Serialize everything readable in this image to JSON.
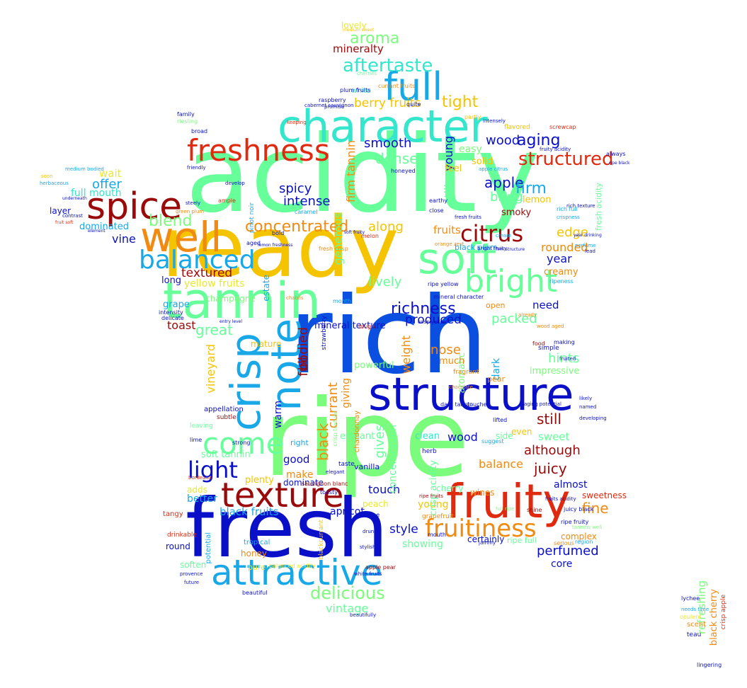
{
  "palette": {
    "lime": "#7CFC7C",
    "green": "#66FF99",
    "aqua": "#33E6CC",
    "sky": "#18A8E8",
    "blue": "#0A4FE0",
    "navy": "#0A10C8",
    "darkred": "#9A0A0A",
    "red": "#E02A10",
    "orange": "#F08A10",
    "gold": "#F5C400",
    "yellow": "#E8E830",
    "grey": "#6070A0"
  },
  "words": [
    {
      "text": "acidity",
      "color": "green"
    },
    {
      "text": "ready",
      "color": "gold"
    },
    {
      "text": "rich",
      "color": "blue"
    },
    {
      "text": "ripe",
      "color": "lime"
    },
    {
      "text": "fresh",
      "color": "navy"
    },
    {
      "text": "tannin",
      "color": "green"
    },
    {
      "text": "character",
      "color": "aqua"
    },
    {
      "text": "structure",
      "color": "navy"
    },
    {
      "text": "crisp",
      "color": "sky"
    },
    {
      "text": "note",
      "color": "sky"
    },
    {
      "text": "fruity",
      "color": "red"
    },
    {
      "text": "texture",
      "color": "darkred"
    },
    {
      "text": "attractive",
      "color": "sky"
    },
    {
      "text": "spice",
      "color": "darkred"
    },
    {
      "text": "well",
      "color": "orange"
    },
    {
      "text": "freshness",
      "color": "red"
    },
    {
      "text": "soft",
      "color": "green"
    },
    {
      "text": "full",
      "color": "sky"
    },
    {
      "text": "bright",
      "color": "green"
    },
    {
      "text": "balanced",
      "color": "sky"
    },
    {
      "text": "come",
      "color": "green"
    },
    {
      "text": "light",
      "color": "navy"
    },
    {
      "text": "fruitiness",
      "color": "orange"
    },
    {
      "text": "citrus",
      "color": "darkred"
    },
    {
      "text": "concentrated",
      "color": "orange"
    },
    {
      "text": "structured",
      "color": "red"
    },
    {
      "text": "richness",
      "color": "navy"
    },
    {
      "text": "aftertaste",
      "color": "aqua"
    },
    {
      "text": "delicious",
      "color": "lime"
    },
    {
      "text": "aroma",
      "color": "lime"
    },
    {
      "text": "mineralty",
      "color": "darkred"
    },
    {
      "text": "lovely",
      "color": "yellow"
    },
    {
      "text": "berry fruits",
      "color": "gold"
    },
    {
      "text": "tight",
      "color": "gold"
    },
    {
      "text": "smooth",
      "color": "navy"
    },
    {
      "text": "dense",
      "color": "green"
    },
    {
      "text": "aging",
      "color": "navy"
    },
    {
      "text": "wood",
      "color": "navy"
    },
    {
      "text": "apple",
      "color": "navy"
    },
    {
      "text": "firm",
      "color": "sky"
    },
    {
      "text": "blend",
      "color": "lime"
    },
    {
      "text": "spicy",
      "color": "navy"
    },
    {
      "text": "intense",
      "color": "navy"
    },
    {
      "text": "offer",
      "color": "sky"
    },
    {
      "text": "full mouth",
      "color": "aqua"
    },
    {
      "text": "dominated",
      "color": "sky"
    },
    {
      "text": "vine",
      "color": "navy"
    },
    {
      "text": "wait",
      "color": "yellow"
    },
    {
      "text": "layer",
      "color": "navy"
    },
    {
      "text": "textured",
      "color": "darkred"
    },
    {
      "text": "yellow fruits",
      "color": "yellow"
    },
    {
      "text": "long",
      "color": "navy"
    },
    {
      "text": "grape",
      "color": "sky"
    },
    {
      "text": "toast",
      "color": "darkred"
    },
    {
      "text": "great",
      "color": "green"
    },
    {
      "text": "lively",
      "color": "green"
    },
    {
      "text": "produced",
      "color": "navy"
    },
    {
      "text": "packed",
      "color": "green"
    },
    {
      "text": "need",
      "color": "navy"
    },
    {
      "text": "edge",
      "color": "gold"
    },
    {
      "text": "rounded",
      "color": "orange"
    },
    {
      "text": "year",
      "color": "navy"
    },
    {
      "text": "creamy",
      "color": "orange"
    },
    {
      "text": "fruits",
      "color": "orange"
    },
    {
      "text": "along",
      "color": "gold"
    },
    {
      "text": "bring",
      "color": "green"
    },
    {
      "text": "smoky",
      "color": "darkred"
    },
    {
      "text": "lemon",
      "color": "gold"
    },
    {
      "text": "mineral texture",
      "color": "navy"
    },
    {
      "text": "nose",
      "color": "orange"
    },
    {
      "text": "vineyard",
      "color": "gold"
    },
    {
      "text": "sweet",
      "color": "green"
    },
    {
      "text": "still",
      "color": "darkred"
    },
    {
      "text": "although",
      "color": "darkred"
    },
    {
      "text": "hints",
      "color": "green"
    },
    {
      "text": "impressive",
      "color": "lime"
    },
    {
      "text": "balance",
      "color": "orange"
    },
    {
      "text": "juicy",
      "color": "darkred"
    },
    {
      "text": "almost",
      "color": "navy"
    },
    {
      "text": "soft tannin",
      "color": "green"
    },
    {
      "text": "good",
      "color": "navy"
    },
    {
      "text": "make",
      "color": "orange"
    },
    {
      "text": "plenty",
      "color": "gold"
    },
    {
      "text": "dominate",
      "color": "navy"
    },
    {
      "text": "touch",
      "color": "navy"
    },
    {
      "text": "elegant",
      "color": "green"
    },
    {
      "text": "wood",
      "color": "navy"
    },
    {
      "text": "apricot",
      "color": "navy"
    },
    {
      "text": "black fruits",
      "color": "sky"
    },
    {
      "text": "cherry",
      "color": "green"
    },
    {
      "text": "wines",
      "color": "orange"
    },
    {
      "text": "fine",
      "color": "orange"
    },
    {
      "text": "sweetness",
      "color": "red"
    },
    {
      "text": "style",
      "color": "navy"
    },
    {
      "text": "young",
      "color": "gold"
    },
    {
      "text": "showing",
      "color": "green"
    },
    {
      "text": "certainly",
      "color": "navy"
    },
    {
      "text": "perfumed",
      "color": "navy"
    },
    {
      "text": "core",
      "color": "navy"
    },
    {
      "text": "complex",
      "color": "orange"
    },
    {
      "text": "round",
      "color": "navy"
    },
    {
      "text": "better",
      "color": "sky"
    },
    {
      "text": "adds",
      "color": "yellow"
    },
    {
      "text": "soften",
      "color": "green"
    },
    {
      "text": "honey",
      "color": "orange"
    },
    {
      "text": "vintage",
      "color": "green"
    },
    {
      "text": "peach",
      "color": "yellow"
    },
    {
      "text": "clean",
      "color": "aqua"
    },
    {
      "text": "side",
      "color": "green"
    },
    {
      "text": "even",
      "color": "gold"
    },
    {
      "text": "generous",
      "color": "green"
    },
    {
      "text": "champagne",
      "color": "lime"
    },
    {
      "text": "mature",
      "color": "gold"
    },
    {
      "text": "gives",
      "color": "green"
    },
    {
      "text": "giving",
      "color": "orange"
    },
    {
      "text": "powerful",
      "color": "lime"
    },
    {
      "text": "ripe full",
      "color": "green"
    },
    {
      "text": "crisp acidity",
      "color": "green"
    },
    {
      "text": "black",
      "color": "orange"
    },
    {
      "text": "currant",
      "color": "orange"
    },
    {
      "text": "bodied",
      "color": "darkred"
    },
    {
      "text": "full",
      "color": "darkred"
    },
    {
      "text": "concentration",
      "color": "green"
    },
    {
      "text": "warm",
      "color": "navy"
    },
    {
      "text": "estate",
      "color": "sky"
    },
    {
      "text": "young",
      "color": "navy"
    },
    {
      "text": "still",
      "color": "green"
    },
    {
      "text": "firm tannin",
      "color": "orange"
    },
    {
      "text": "weight",
      "color": "orange"
    },
    {
      "text": "aromatic",
      "color": "lime"
    },
    {
      "text": "dark",
      "color": "sky"
    },
    {
      "text": "refreshing",
      "color": "lime"
    },
    {
      "text": "black cherry",
      "color": "orange"
    },
    {
      "text": "crisp apple",
      "color": "red"
    },
    {
      "text": "lingering",
      "color": "navy"
    },
    {
      "text": "scent",
      "color": "orange"
    },
    {
      "text": "teau",
      "color": "navy"
    },
    {
      "text": "needs time",
      "color": "sky"
    },
    {
      "text": "lychee",
      "color": "navy"
    },
    {
      "text": "opulent",
      "color": "yellow"
    },
    {
      "text": "beautiful",
      "color": "navy"
    },
    {
      "text": "beautifully",
      "color": "navy"
    },
    {
      "text": "pure",
      "color": "yellow"
    },
    {
      "text": "balanced acidity",
      "color": "yellow"
    },
    {
      "text": "tropical",
      "color": "sky"
    },
    {
      "text": "potential",
      "color": "sky"
    },
    {
      "text": "drinkable",
      "color": "red"
    },
    {
      "text": "provence",
      "color": "navy"
    },
    {
      "text": "future",
      "color": "navy"
    },
    {
      "text": "tangy",
      "color": "red"
    },
    {
      "text": "bordeaux",
      "color": "red"
    },
    {
      "text": "intensity",
      "color": "navy"
    },
    {
      "text": "delicate",
      "color": "navy"
    },
    {
      "text": "appellation",
      "color": "navy"
    },
    {
      "text": "subtle",
      "color": "darkred"
    },
    {
      "text": "strong",
      "color": "navy"
    },
    {
      "text": "leaving",
      "color": "green"
    },
    {
      "text": "lime",
      "color": "navy"
    },
    {
      "text": "family",
      "color": "navy"
    },
    {
      "text": "riesling",
      "color": "lime"
    },
    {
      "text": "broad",
      "color": "navy"
    },
    {
      "text": "herbaceous",
      "color": "sky"
    },
    {
      "text": "medium bodied",
      "color": "sky"
    },
    {
      "text": "soon",
      "color": "gold"
    },
    {
      "text": "contrast",
      "color": "navy"
    },
    {
      "text": "pinot noir",
      "color": "sky"
    },
    {
      "text": "flavored",
      "color": "gold"
    },
    {
      "text": "screwcap",
      "color": "red"
    },
    {
      "text": "honeyed",
      "color": "navy"
    },
    {
      "text": "white",
      "color": "aqua"
    },
    {
      "text": "raspberry",
      "color": "navy"
    },
    {
      "text": "cherries",
      "color": "green"
    },
    {
      "text": "medium sweet",
      "color": "gold"
    },
    {
      "text": "chardonnay",
      "color": "orange"
    },
    {
      "text": "vanilla",
      "color": "navy"
    },
    {
      "text": "pear",
      "color": "orange"
    },
    {
      "text": "grapefruit",
      "color": "orange"
    },
    {
      "text": "stone",
      "color": "navy"
    },
    {
      "text": "herb",
      "color": "navy"
    },
    {
      "text": "ripe yellow",
      "color": "navy"
    },
    {
      "text": "black plum",
      "color": "sky"
    },
    {
      "text": "open",
      "color": "orange"
    },
    {
      "text": "fresh acidity",
      "color": "green"
    },
    {
      "text": "ripeness",
      "color": "sky"
    },
    {
      "text": "suggest",
      "color": "sky"
    },
    {
      "text": "white fruits",
      "color": "navy"
    },
    {
      "text": "cabernet sauvignon",
      "color": "navy"
    },
    {
      "text": "sauvignon blanc",
      "color": "darkred"
    },
    {
      "text": "apple pear",
      "color": "darkred"
    },
    {
      "text": "food",
      "color": "darkred"
    },
    {
      "text": "fruits acidity",
      "color": "navy"
    },
    {
      "text": "ripe fruity",
      "color": "navy"
    },
    {
      "text": "tannins well",
      "color": "lime"
    },
    {
      "text": "region",
      "color": "sky"
    },
    {
      "text": "serious",
      "color": "orange"
    },
    {
      "text": "shine",
      "color": "darkred"
    },
    {
      "text": "juicy black",
      "color": "navy"
    },
    {
      "text": "full ripe",
      "color": "lime"
    },
    {
      "text": "drunk",
      "color": "navy"
    },
    {
      "text": "mouth",
      "color": "navy"
    },
    {
      "text": "stylish",
      "color": "navy"
    },
    {
      "text": "blackcurrant",
      "color": "gold"
    },
    {
      "text": "fragrant",
      "color": "orange"
    },
    {
      "text": "much",
      "color": "orange"
    },
    {
      "text": "fresh crisp",
      "color": "orange"
    },
    {
      "text": "mineral character",
      "color": "navy"
    },
    {
      "text": "chablis",
      "color": "orange"
    },
    {
      "text": "strawberry",
      "color": "navy"
    },
    {
      "text": "month",
      "color": "sky"
    },
    {
      "text": "melon",
      "color": "red"
    },
    {
      "text": "bold",
      "color": "navy"
    },
    {
      "text": "aged",
      "color": "navy"
    },
    {
      "text": "caramel",
      "color": "sky"
    },
    {
      "text": "green plum",
      "color": "orange"
    },
    {
      "text": "steely",
      "color": "navy"
    },
    {
      "text": "ample",
      "color": "red"
    },
    {
      "text": "develop",
      "color": "navy"
    },
    {
      "text": "friendly",
      "color": "navy"
    },
    {
      "text": "crispness",
      "color": "sky"
    },
    {
      "text": "fresh fruits",
      "color": "navy"
    },
    {
      "text": "cream",
      "color": "sky"
    },
    {
      "text": "tough",
      "color": "red"
    },
    {
      "text": "ripe fruits",
      "color": "darkred"
    },
    {
      "text": "toasty",
      "color": "navy"
    },
    {
      "text": "right",
      "color": "sky"
    },
    {
      "text": "taste",
      "color": "navy"
    },
    {
      "text": "elegant",
      "color": "navy"
    },
    {
      "text": "partly",
      "color": "gold"
    },
    {
      "text": "apple citrus",
      "color": "sky"
    },
    {
      "text": "rich full",
      "color": "sky"
    },
    {
      "text": "perfume",
      "color": "sky"
    },
    {
      "text": "year drinking",
      "color": "navy"
    },
    {
      "text": "lead",
      "color": "navy"
    },
    {
      "text": "dark tannin",
      "color": "navy"
    },
    {
      "text": "aging potential",
      "color": "navy"
    },
    {
      "text": "wood aged",
      "color": "orange"
    },
    {
      "text": "simple",
      "color": "navy"
    },
    {
      "text": "making",
      "color": "navy"
    },
    {
      "text": "fruited",
      "color": "navy"
    },
    {
      "text": "developing",
      "color": "navy"
    },
    {
      "text": "named",
      "color": "navy"
    },
    {
      "text": "likely",
      "color": "navy"
    },
    {
      "text": "already",
      "color": "orange"
    },
    {
      "text": "jammy",
      "color": "navy"
    },
    {
      "text": "touches",
      "color": "navy"
    },
    {
      "text": "lifted",
      "color": "navy"
    },
    {
      "text": "bright fruity",
      "color": "navy"
    },
    {
      "text": "firm structure",
      "color": "navy"
    },
    {
      "text": "orange zest",
      "color": "orange"
    },
    {
      "text": "chocolate",
      "color": "orange"
    },
    {
      "text": "crisp texture",
      "color": "lime"
    },
    {
      "text": "crisp yellow",
      "color": "navy"
    },
    {
      "text": "earthy",
      "color": "navy"
    },
    {
      "text": "close",
      "color": "navy"
    },
    {
      "text": "quite",
      "color": "navy"
    },
    {
      "text": "intensely",
      "color": "navy"
    },
    {
      "text": "always",
      "color": "navy"
    },
    {
      "text": "ripe black",
      "color": "navy"
    },
    {
      "text": "rich texture",
      "color": "navy"
    },
    {
      "text": "fruity acidity",
      "color": "navy"
    },
    {
      "text": "plum fruits",
      "color": "navy"
    },
    {
      "text": "fruit soft",
      "color": "red"
    },
    {
      "text": "currant fruits",
      "color": "orange"
    },
    {
      "text": "keeping",
      "color": "red"
    },
    {
      "text": "promise",
      "color": "navy"
    },
    {
      "text": "underneath",
      "color": "navy"
    },
    {
      "text": "element",
      "color": "navy"
    },
    {
      "text": "entry level",
      "color": "navy"
    },
    {
      "text": "lemon freshness",
      "color": "navy"
    },
    {
      "text": "soft fruity",
      "color": "navy"
    },
    {
      "text": "solid",
      "color": "gold"
    },
    {
      "text": "feel",
      "color": "gold"
    },
    {
      "text": "easy",
      "color": "lime"
    }
  ]
}
